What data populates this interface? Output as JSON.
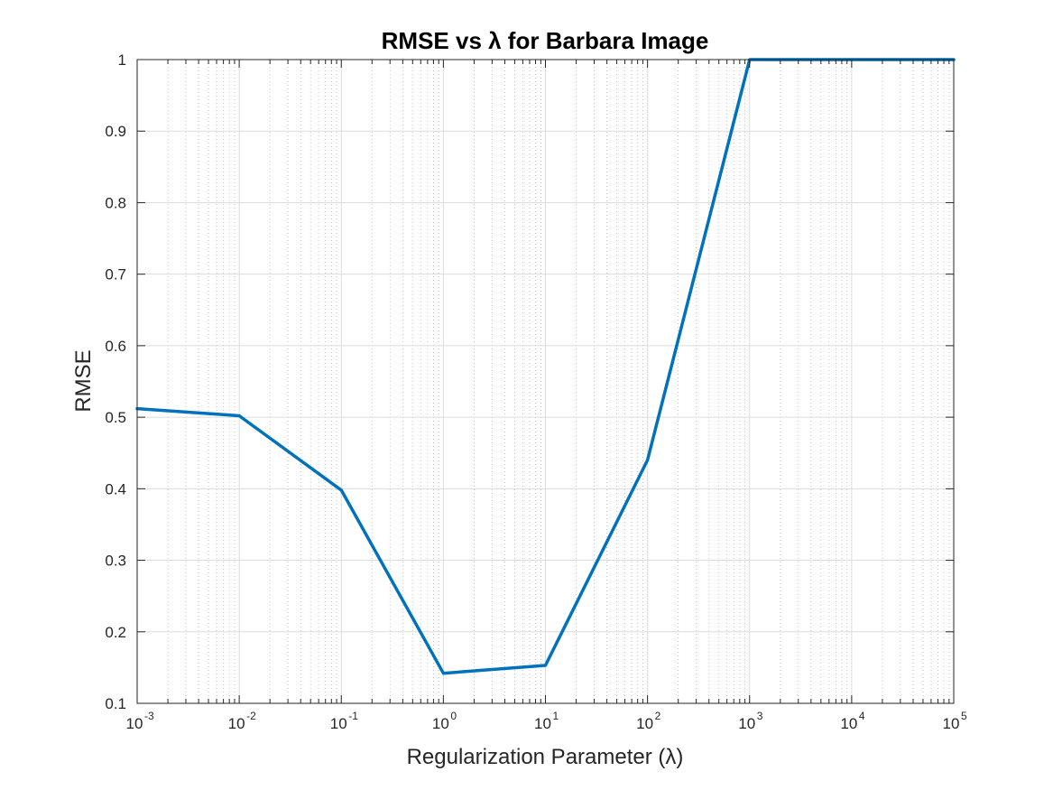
{
  "chart_data": {
    "type": "line",
    "title": "RMSE vs λ for Barbara Image",
    "xlabel": "Regularization Parameter (λ)",
    "ylabel": "RMSE",
    "xscale": "log",
    "xlim": [
      0.001,
      100000
    ],
    "ylim": [
      0.1,
      1
    ],
    "grid": true,
    "minor_grid": true,
    "legend": "none",
    "x_ticks": [
      {
        "base": "10",
        "exp": "-3"
      },
      {
        "base": "10",
        "exp": "-2"
      },
      {
        "base": "10",
        "exp": "-1"
      },
      {
        "base": "10",
        "exp": "0"
      },
      {
        "base": "10",
        "exp": "1"
      },
      {
        "base": "10",
        "exp": "2"
      },
      {
        "base": "10",
        "exp": "3"
      },
      {
        "base": "10",
        "exp": "4"
      },
      {
        "base": "10",
        "exp": "5"
      }
    ],
    "y_ticks": [
      "0.1",
      "0.2",
      "0.3",
      "0.4",
      "0.5",
      "0.6",
      "0.7",
      "0.8",
      "0.9",
      "1"
    ],
    "series": [
      {
        "color": "#0072BD",
        "x": [
          0.001,
          0.01,
          0.1,
          1,
          10,
          100,
          1000,
          10000,
          100000
        ],
        "y": [
          0.512,
          0.502,
          0.398,
          0.142,
          0.153,
          0.44,
          1.0,
          1.0,
          1.0
        ]
      }
    ]
  }
}
